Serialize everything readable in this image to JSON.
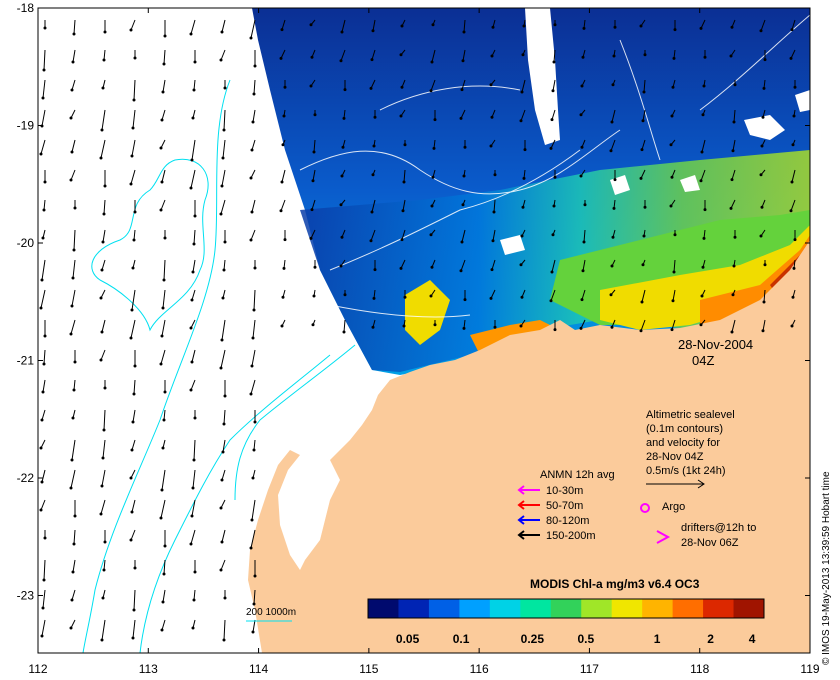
{
  "map": {
    "date": "28-Nov-2004",
    "time": "04Z",
    "x_ticks": [
      "112",
      "113",
      "114",
      "115",
      "116",
      "117",
      "118",
      "119"
    ],
    "y_ticks": [
      "-18",
      "-19",
      "-20",
      "-21",
      "-22",
      "-23"
    ],
    "side_credit": "© IMOS 19-May-2013 13:39:59 Hobart time"
  },
  "info_block": {
    "lines": [
      "Altimetric sealevel",
      "(0.1m contours)",
      "and velocity for",
      "28-Nov 04Z",
      "0.5m/s (1kt 24h)"
    ]
  },
  "anmn_legend": {
    "title": "ANMN 12h avg",
    "items": [
      {
        "label": "10-30m",
        "color": "#ff00ff"
      },
      {
        "label": "50-70m",
        "color": "#ff0000"
      },
      {
        "label": "80-120m",
        "color": "#0000ff"
      },
      {
        "label": "150-200m",
        "color": "#000000"
      }
    ]
  },
  "argo_label": "Argo",
  "drifters": {
    "line1": "drifters@12h to",
    "line2": "28-Nov 06Z"
  },
  "bathymetry_label": "200  1000m",
  "colorbar": {
    "title": "MODIS Chl-a mg/m3 v6.4 OC3",
    "tick_labels": [
      "0.05",
      "0.1",
      "0.25",
      "0.5",
      "1",
      "2",
      "4"
    ],
    "colors": [
      "#000a6e",
      "#0024b4",
      "#0060e6",
      "#00a0ff",
      "#00d2e6",
      "#00e6a0",
      "#32d25a",
      "#a0e628",
      "#f0e600",
      "#ffb400",
      "#ff6e00",
      "#dc2800",
      "#a01400"
    ]
  },
  "colors": {
    "land": "#fbcb9b",
    "cloud_nodata": "#ffffff",
    "contour": "#00e0f0",
    "sealevel_contour": "#ffffff",
    "magenta": "#ff00ff"
  }
}
